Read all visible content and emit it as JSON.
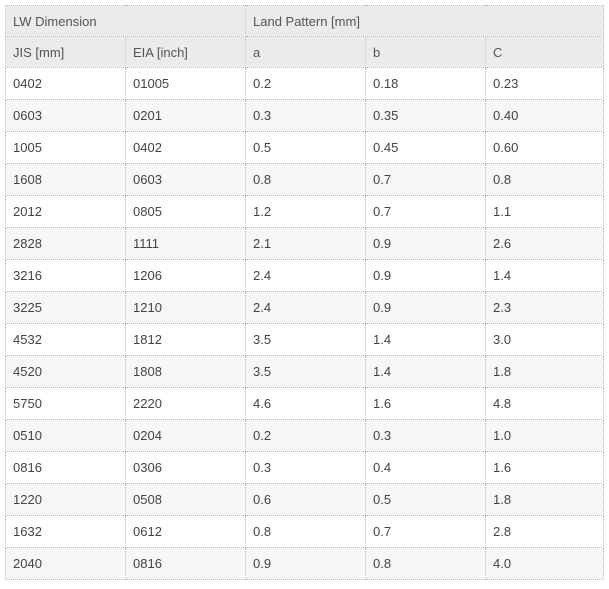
{
  "header": {
    "group_lw": "LW Dimension",
    "group_land": "Land Pattern [mm]",
    "columns": [
      "JIS [mm]",
      "EIA [inch]",
      "a",
      "b",
      "C"
    ]
  },
  "rows": [
    [
      "0402",
      "01005",
      "0.2",
      "0.18",
      "0.23"
    ],
    [
      "0603",
      "0201",
      "0.3",
      "0.35",
      "0.40"
    ],
    [
      "1005",
      "0402",
      "0.5",
      "0.45",
      "0.60"
    ],
    [
      "1608",
      "0603",
      "0.8",
      "0.7",
      "0.8"
    ],
    [
      "2012",
      "0805",
      "1.2",
      "0.7",
      "1.1"
    ],
    [
      "2828",
      "1111",
      "2.1",
      "0.9",
      "2.6"
    ],
    [
      "3216",
      "1206",
      "2.4",
      "0.9",
      "1.4"
    ],
    [
      "3225",
      "1210",
      "2.4",
      "0.9",
      "2.3"
    ],
    [
      "4532",
      "1812",
      "3.5",
      "1.4",
      "3.0"
    ],
    [
      "4520",
      "1808",
      "3.5",
      "1.4",
      "1.8"
    ],
    [
      "5750",
      "2220",
      "4.6",
      "1.6",
      "4.8"
    ],
    [
      "0510",
      "0204",
      "0.2",
      "0.3",
      "1.0"
    ],
    [
      "0816",
      "0306",
      "0.3",
      "0.4",
      "1.6"
    ],
    [
      "1220",
      "0508",
      "0.6",
      "0.5",
      "1.8"
    ],
    [
      "1632",
      "0612",
      "0.8",
      "0.7",
      "2.8"
    ],
    [
      "2040",
      "0816",
      "0.9",
      "0.8",
      "4.0"
    ]
  ]
}
